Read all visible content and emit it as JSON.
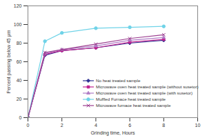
{
  "chart_data": {
    "type": "line",
    "x_label": "Grinding time, Hours",
    "y_label": "Percent passing below 45 μm",
    "x": [
      0,
      1,
      2,
      4,
      6,
      8
    ],
    "xlim": [
      0,
      10
    ],
    "xticks": [
      0,
      2,
      4,
      6,
      8,
      10
    ],
    "ylim": [
      0,
      120
    ],
    "yticks": [
      0,
      20,
      40,
      60,
      80,
      100,
      120
    ],
    "grid": false,
    "legend": "lower right",
    "series": [
      {
        "name": "No heat treated sample",
        "color": "#2e3192",
        "marker": "diamond",
        "values": [
          0,
          67,
          72,
          75,
          80,
          83
        ]
      },
      {
        "name": "Microwave oven heat treated sample (without susetor)",
        "color": "#c0218f",
        "marker": "square",
        "values": [
          0,
          68,
          72,
          75,
          81,
          84
        ]
      },
      {
        "name": "Microwave oven heat treated sample (with susetor)",
        "color": "#b07cc6",
        "marker": "triangle",
        "values": [
          0,
          69,
          73,
          77,
          83,
          86
        ]
      },
      {
        "name": "Muffled Furnace heat treated sample",
        "color": "#6fd3e8",
        "marker": "circle",
        "values": [
          0,
          82,
          91,
          96,
          97,
          98
        ]
      },
      {
        "name": "Microwave furnace heat treated sample",
        "color": "#9b3d8f",
        "marker": "x",
        "values": [
          0,
          70,
          73,
          79,
          85,
          89
        ]
      }
    ]
  }
}
